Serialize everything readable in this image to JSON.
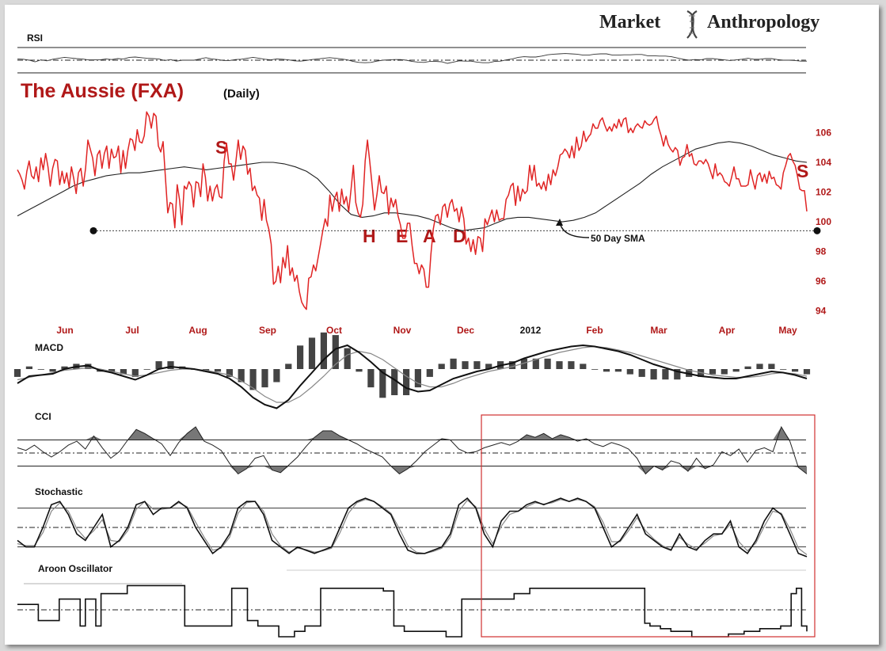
{
  "brand": {
    "left": "Market",
    "right": "Anthropology",
    "icon": "dna-helix-icon",
    "color": "#222222"
  },
  "colors": {
    "price": "#e02424",
    "accent": "#b01818",
    "box": "#d03030",
    "ink": "#111111",
    "grey": "#7a7a7a"
  },
  "chart_data": {
    "type": "line",
    "title": "The Aussie (FXA)",
    "subtitle": "(Daily)",
    "x_labels": [
      "Jun",
      "Jul",
      "Aug",
      "Sep",
      "Oct",
      "Nov",
      "Dec",
      "2012",
      "Feb",
      "Mar",
      "Apr",
      "May"
    ],
    "y_ticks": [
      94,
      96,
      98,
      100,
      102,
      104,
      106
    ],
    "ylim": [
      93.5,
      108
    ],
    "series": [
      {
        "name": "",
        "values": [
          103.5,
          103.2,
          102.8,
          102.2,
          103.4,
          104.1,
          103.1,
          102.9,
          103.7,
          102.7,
          104.3,
          103.5,
          104.6,
          103.7,
          102.4,
          103.6,
          104.2,
          104.1,
          102.5,
          103.4,
          102.6,
          103.3,
          102.3,
          103.7,
          102.9,
          101.9,
          103.3,
          103.6,
          102.4,
          103.6,
          105.5,
          104.9,
          104.3,
          103.1,
          104.5,
          104.8,
          103.6,
          104.6,
          105.1,
          103.6,
          104.9,
          104.3,
          104.4,
          105.1,
          103.3,
          104.8,
          103.6,
          104.8,
          105.6,
          105.5,
          104.8,
          106.2,
          105.4,
          105.3,
          105.8,
          107.4,
          107.1,
          106.3,
          107.3,
          107.1,
          105.1,
          104.7,
          105.4,
          103.0,
          100.6,
          101.3,
          101.2,
          99.6,
          102.5,
          101.5,
          99.8,
          102.4,
          102.2,
          102.7,
          102.4,
          101.0,
          102.7,
          102.6,
          101.7,
          103.9,
          103.0,
          101.4,
          102.4,
          101.4,
          102.2,
          102.5,
          101.7,
          101.6,
          104.1,
          105.3,
          103.9,
          103.9,
          102.8,
          104.1,
          105.5,
          104.2,
          105.1,
          104.8,
          103.2,
          103.6,
          102.1,
          102.4,
          101.8,
          101.6,
          100.1,
          101.5,
          100.1,
          99.5,
          98.5,
          95.8,
          96.0,
          97.0,
          95.9,
          97.6,
          96.9,
          98.4,
          96.4,
          96.9,
          96.0,
          96.4,
          95.3,
          94.6,
          94.3,
          94.1,
          96.2,
          96.3,
          97.1,
          96.7,
          97.6,
          98.5,
          99.4,
          100.2,
          99.7,
          101.8,
          100.7,
          101.6,
          102.0,
          100.7,
          102.2,
          101.2,
          101.7,
          100.7,
          102.2,
          103.8,
          101.3,
          100.6,
          100.3,
          101.2,
          104.1,
          105.5,
          104.0,
          102.4,
          100.8,
          101.8,
          103.1,
          102.0,
          101.9,
          102.4,
          100.5,
          101.6,
          101.0,
          101.5,
          100.4,
          99.8,
          98.9,
          98.9,
          99.9,
          99.9,
          98.4,
          97.2,
          97.2,
          96.5,
          97.1,
          96.8,
          95.6,
          95.6,
          97.8,
          99.5,
          100.4,
          100.5,
          99.8,
          101.0,
          101.2,
          100.3,
          101.2,
          101.5,
          100.7,
          100.9,
          100.0,
          101.0,
          100.2,
          98.5,
          98.9,
          98.0,
          98.8,
          97.8,
          99.0,
          98.9,
          98.0,
          100.2,
          99.8,
          100.3,
          100.8,
          100.0,
          100.8,
          100.1,
          100.2,
          100.2,
          101.5,
          101.8,
          102.4,
          102.6,
          101.1,
          102.4,
          101.4,
          102.2,
          101.9,
          102.1,
          103.8,
          102.8,
          103.8,
          102.4,
          102.6,
          102.2,
          102.7,
          102.1,
          103.2,
          102.5,
          103.5,
          103.1,
          103.7,
          104.5,
          104.6,
          104.9,
          104.7,
          104.3,
          105.1,
          104.3,
          105.7,
          104.8,
          105.1,
          106.1,
          105.4,
          105.7,
          105.9,
          106.6,
          106.3,
          106.3,
          106.8,
          107.0,
          106.5,
          106.1,
          106.4,
          106.1,
          106.6,
          106.3,
          106.9,
          106.4,
          106.9,
          107.0,
          106.0,
          106.3,
          106.0,
          106.4,
          106.6,
          106.4,
          106.3,
          106.8,
          106.6,
          106.5,
          106.6,
          106.9,
          107.1,
          106.3,
          105.8,
          105.1,
          105.8,
          105.2,
          104.9,
          104.7,
          105.0,
          104.8,
          103.8,
          104.3,
          104.4,
          105.2,
          104.4,
          104.6,
          103.9,
          103.8,
          104.1,
          104.1,
          103.9,
          104.2,
          103.9,
          103.4,
          102.9,
          103.9,
          103.1,
          103.3,
          103.1,
          102.7,
          102.6,
          102.4,
          103.0,
          103.7,
          102.9,
          102.9,
          102.4,
          102.4,
          102.4,
          102.5,
          103.5,
          102.8,
          102.2,
          103.1,
          103.3,
          102.7,
          103.2,
          102.6,
          103.4,
          102.9,
          103.0,
          102.5,
          102.4,
          102.2,
          103.3,
          103.8,
          104.4,
          104.6,
          104.1,
          103.8,
          103.1,
          102.2,
          102.1,
          102.1,
          100.7
        ]
      },
      {
        "name": "50 Day SMA",
        "values": [
          100.4,
          100.8,
          101.2,
          101.6,
          102.0,
          102.4,
          102.7,
          102.9,
          103.1,
          103.2,
          103.3,
          103.3,
          103.4,
          103.5,
          103.6,
          103.7,
          103.6,
          103.5,
          103.6,
          103.7,
          103.8,
          103.9,
          104.0,
          104.0,
          103.9,
          103.7,
          103.4,
          102.9,
          102.1,
          101.2,
          100.5,
          100.3,
          100.4,
          100.6,
          100.6,
          100.5,
          100.4,
          100.2,
          99.9,
          99.6,
          99.4,
          99.5,
          99.6,
          99.9,
          100.2,
          100.3,
          100.3,
          100.2,
          100.1,
          100.0,
          100.1,
          100.3,
          100.6,
          101.1,
          101.6,
          102.1,
          102.6,
          103.2,
          103.7,
          104.1,
          104.5,
          104.9,
          105.1,
          105.3,
          105.4,
          105.3,
          105.1,
          104.8,
          104.5,
          104.3,
          104.1,
          104.0
        ],
        "x_start": "Jun",
        "x_end": "May"
      }
    ],
    "annotations": [
      "S",
      "H",
      "E",
      "A",
      "D",
      "S",
      "50 Day SMA"
    ],
    "neckline": 99.4,
    "panels": [
      {
        "name": "RSI",
        "type": "line",
        "levels": [
          70,
          50,
          30
        ],
        "values": [
          52.0,
          51.5,
          50.0,
          47.5,
          50.5,
          49.0,
          51.5,
          53.0,
          54.5,
          53.5,
          52.5,
          52.0,
          50.5,
          50.5,
          50.5,
          52.0,
          51.0,
          52.5,
          52.0,
          54.5,
          55.0,
          54.0,
          53.0,
          52.5,
          52.0,
          49.5,
          51.0,
          48.5,
          50.0,
          50.0,
          50.0,
          52.0,
          54.0,
          52.0,
          51.0,
          49.5,
          49.5,
          51.0,
          51.5,
          53.0,
          54.5,
          53.0,
          51.5,
          50.5,
          52.0,
          51.5,
          50.5,
          49.0,
          48.5,
          49.5,
          51.0,
          52.0,
          53.0,
          54.0,
          53.0,
          52.0,
          50.5,
          48.0,
          46.5,
          46.0,
          46.5,
          48.5,
          50.0,
          50.5,
          51.0,
          51.0,
          50.0,
          48.0,
          47.0,
          46.5,
          48.0,
          48.0,
          47.5,
          45.0,
          47.0,
          49.0,
          48.5,
          48.5,
          47.0,
          46.0,
          46.0,
          48.0,
          48.5,
          50.5,
          52.0,
          54.5,
          55.5,
          55.0,
          55.0,
          56.5,
          58.5,
          59.5,
          60.0,
          60.5,
          60.0,
          59.5,
          58.0,
          58.0,
          59.5,
          60.0,
          60.0,
          58.0,
          58.0,
          58.5,
          58.5,
          59.0,
          59.0,
          57.0,
          57.0,
          56.5,
          56.5,
          55.5,
          53.5,
          51.5,
          50.0,
          51.0,
          50.5,
          52.5,
          52.5,
          51.5,
          50.5,
          49.5,
          50.5,
          51.5,
          53.0,
          51.5,
          51.5,
          52.5,
          52.5,
          51.0,
          50.0,
          50.0,
          49.5,
          48.5,
          48.5
        ]
      },
      {
        "name": "MACD",
        "type": "line+histogram",
        "lines": [
          [
            -1.2,
            -0.6,
            -0.5,
            -0.4,
            0.0,
            0.2,
            0.3,
            -0.1,
            -0.3,
            -0.6,
            -0.9,
            -0.5,
            0.0,
            0.2,
            0.1,
            0.0,
            -0.2,
            -0.4,
            -0.8,
            -1.5,
            -2.4,
            -3.0,
            -3.3,
            -2.6,
            -1.4,
            -0.3,
            0.8,
            1.7,
            2.0,
            1.4,
            0.6,
            -0.3,
            -0.9,
            -1.6,
            -1.9,
            -1.8,
            -1.3,
            -0.8,
            -0.5,
            -0.2,
            0.0,
            0.3,
            0.5,
            0.9,
            1.2,
            1.5,
            1.7,
            1.9,
            2.0,
            1.9,
            1.7,
            1.5,
            1.2,
            0.8,
            0.4,
            0.1,
            -0.2,
            -0.4,
            -0.6,
            -0.7,
            -0.8,
            -0.8,
            -0.6,
            -0.4,
            -0.2,
            -0.3,
            -0.5,
            -0.8
          ],
          [
            -0.9,
            -0.7,
            -0.5,
            -0.3,
            -0.1,
            0.0,
            0.1,
            0.0,
            -0.2,
            -0.4,
            -0.6,
            -0.5,
            -0.3,
            -0.1,
            0.0,
            0.0,
            -0.1,
            -0.3,
            -0.5,
            -1.0,
            -1.6,
            -2.3,
            -2.8,
            -2.8,
            -2.3,
            -1.5,
            -0.6,
            0.4,
            1.2,
            1.5,
            1.3,
            0.8,
            0.1,
            -0.6,
            -1.2,
            -1.5,
            -1.5,
            -1.2,
            -0.8,
            -0.5,
            -0.2,
            0.0,
            0.2,
            0.5,
            0.8,
            1.1,
            1.4,
            1.6,
            1.8,
            1.9,
            1.8,
            1.6,
            1.4,
            1.1,
            0.8,
            0.5,
            0.2,
            -0.1,
            -0.3,
            -0.5,
            -0.6,
            -0.7,
            -0.7,
            -0.6,
            -0.4,
            -0.3,
            -0.4,
            -0.6
          ]
        ]
      },
      {
        "name": "CCI",
        "type": "line",
        "levels": [
          100,
          0,
          -100
        ],
        "values": [
          40,
          20,
          60,
          10,
          -30,
          10,
          60,
          90,
          30,
          130,
          40,
          -40,
          10,
          100,
          180,
          150,
          110,
          70,
          -20,
          80,
          150,
          200,
          90,
          60,
          20,
          -80,
          -160,
          -120,
          -40,
          -20,
          -130,
          -150,
          -90,
          -30,
          50,
          120,
          170,
          170,
          130,
          100,
          70,
          30,
          0,
          -30,
          -100,
          -160,
          -120,
          -60,
          10,
          60,
          110,
          100,
          30,
          0,
          10,
          40,
          60,
          80,
          60,
          90,
          140,
          120,
          150,
          110,
          140,
          120,
          90,
          110,
          70,
          50,
          80,
          60,
          30,
          -40,
          -160,
          -100,
          -130,
          -60,
          -80,
          -140,
          -40,
          -120,
          -90,
          10,
          -20,
          30,
          -70,
          20,
          40,
          10,
          200,
          90,
          -110,
          -160
        ]
      },
      {
        "name": "Stochastic",
        "type": "line",
        "levels": [
          80,
          50,
          20
        ],
        "lines": [
          [
            30,
            20,
            20,
            50,
            85,
            90,
            70,
            40,
            30,
            50,
            70,
            20,
            30,
            50,
            85,
            90,
            70,
            80,
            80,
            90,
            80,
            50,
            30,
            10,
            20,
            40,
            80,
            90,
            90,
            70,
            30,
            20,
            10,
            20,
            15,
            10,
            15,
            20,
            50,
            80,
            90,
            95,
            90,
            80,
            70,
            40,
            15,
            10,
            10,
            15,
            20,
            40,
            85,
            95,
            80,
            40,
            20,
            60,
            75,
            75,
            85,
            90,
            85,
            90,
            95,
            90,
            95,
            90,
            80,
            50,
            20,
            30,
            50,
            70,
            40,
            30,
            20,
            15,
            40,
            20,
            15,
            30,
            40,
            40,
            60,
            20,
            10,
            30,
            60,
            80,
            70,
            40,
            10,
            5
          ],
          [
            25,
            22,
            22,
            42,
            75,
            88,
            75,
            48,
            33,
            45,
            62,
            30,
            28,
            45,
            78,
            90,
            78,
            78,
            80,
            88,
            82,
            58,
            35,
            15,
            18,
            35,
            72,
            88,
            90,
            75,
            40,
            22,
            12,
            18,
            16,
            12,
            14,
            18,
            42,
            72,
            88,
            93,
            90,
            82,
            72,
            48,
            22,
            12,
            10,
            13,
            18,
            35,
            75,
            92,
            82,
            48,
            25,
            52,
            70,
            75,
            82,
            88,
            86,
            88,
            93,
            90,
            93,
            90,
            82,
            58,
            28,
            28,
            45,
            65,
            45,
            32,
            22,
            16,
            35,
            24,
            17,
            26,
            37,
            40,
            55,
            28,
            14,
            26,
            52,
            75,
            72,
            48,
            18,
            8
          ]
        ]
      },
      {
        "name": "Aroon Oscillator",
        "type": "step",
        "levels": [
          0
        ],
        "values": [
          20,
          20,
          20,
          20,
          -40,
          -40,
          -40,
          -40,
          40,
          40,
          40,
          40,
          -60,
          40,
          40,
          -60,
          60,
          60,
          60,
          60,
          60,
          90,
          90,
          90,
          90,
          90,
          90,
          90,
          90,
          90,
          90,
          90,
          -60,
          -60,
          -60,
          -60,
          -60,
          -60,
          -60,
          -60,
          -60,
          80,
          80,
          80,
          -40,
          -40,
          -60,
          -60,
          -60,
          -60,
          -100,
          -100,
          -100,
          -80,
          -80,
          -60,
          -60,
          -60,
          80,
          80,
          80,
          80,
          80,
          80,
          80,
          80,
          80,
          80,
          80,
          80,
          70,
          70,
          -60,
          -60,
          -80,
          -80,
          -80,
          -80,
          -80,
          -80,
          -80,
          -80,
          -100,
          -100,
          -100,
          40,
          40,
          40,
          40,
          40,
          40,
          40,
          40,
          40,
          40,
          60,
          60,
          60,
          80,
          80,
          80,
          80,
          80,
          80,
          80,
          80,
          80,
          80,
          80,
          80,
          80,
          80,
          80,
          80,
          80,
          80,
          80,
          80,
          80,
          80,
          -50,
          -60,
          -60,
          -70,
          -70,
          -80,
          -80,
          -80,
          -80,
          -100,
          -100,
          -100,
          -100,
          -100,
          -100,
          -100,
          -90,
          -90,
          -90,
          -80,
          -80,
          -80,
          -70,
          -70,
          -70,
          -70,
          -60,
          -60,
          60,
          80,
          -60,
          -80
        ]
      }
    ]
  }
}
